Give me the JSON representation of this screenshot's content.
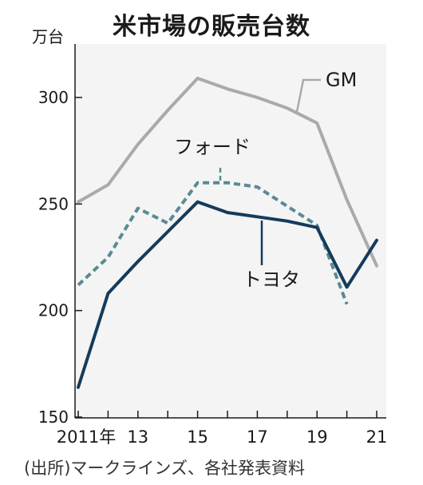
{
  "chart_data": {
    "type": "line",
    "title": "米市場の販売台数",
    "ylabel": "万台",
    "source": "(出所)マークラインズ、各社発表資料",
    "x": [
      "2011",
      "2012",
      "2013",
      "2014",
      "2015",
      "2016",
      "2017",
      "2018",
      "2019",
      "2020",
      "2021"
    ],
    "x_tick_labels": [
      "2011年",
      "13",
      "15",
      "17",
      "19",
      "21"
    ],
    "x_tick_positions": [
      "2011",
      "2013",
      "2015",
      "2017",
      "2019",
      "2021"
    ],
    "y_ticks": [
      150,
      200,
      250,
      300
    ],
    "ylim": [
      150,
      330
    ],
    "grid": false,
    "series": [
      {
        "name": "GM",
        "values": [
          251,
          259,
          278,
          294,
          309,
          304,
          300,
          295,
          288,
          252,
          221
        ],
        "color": "#a9a9ae",
        "style": "solid"
      },
      {
        "name": "フォード",
        "values": [
          212,
          225,
          248,
          241,
          260,
          260,
          258,
          249,
          240,
          203,
          null
        ],
        "color": "#5a8a94",
        "style": "dashed"
      },
      {
        "name": "トヨタ",
        "values": [
          164,
          208,
          223,
          237,
          251,
          246,
          244,
          242,
          239,
          211,
          233
        ],
        "color": "#153b5c",
        "style": "solid"
      }
    ]
  }
}
